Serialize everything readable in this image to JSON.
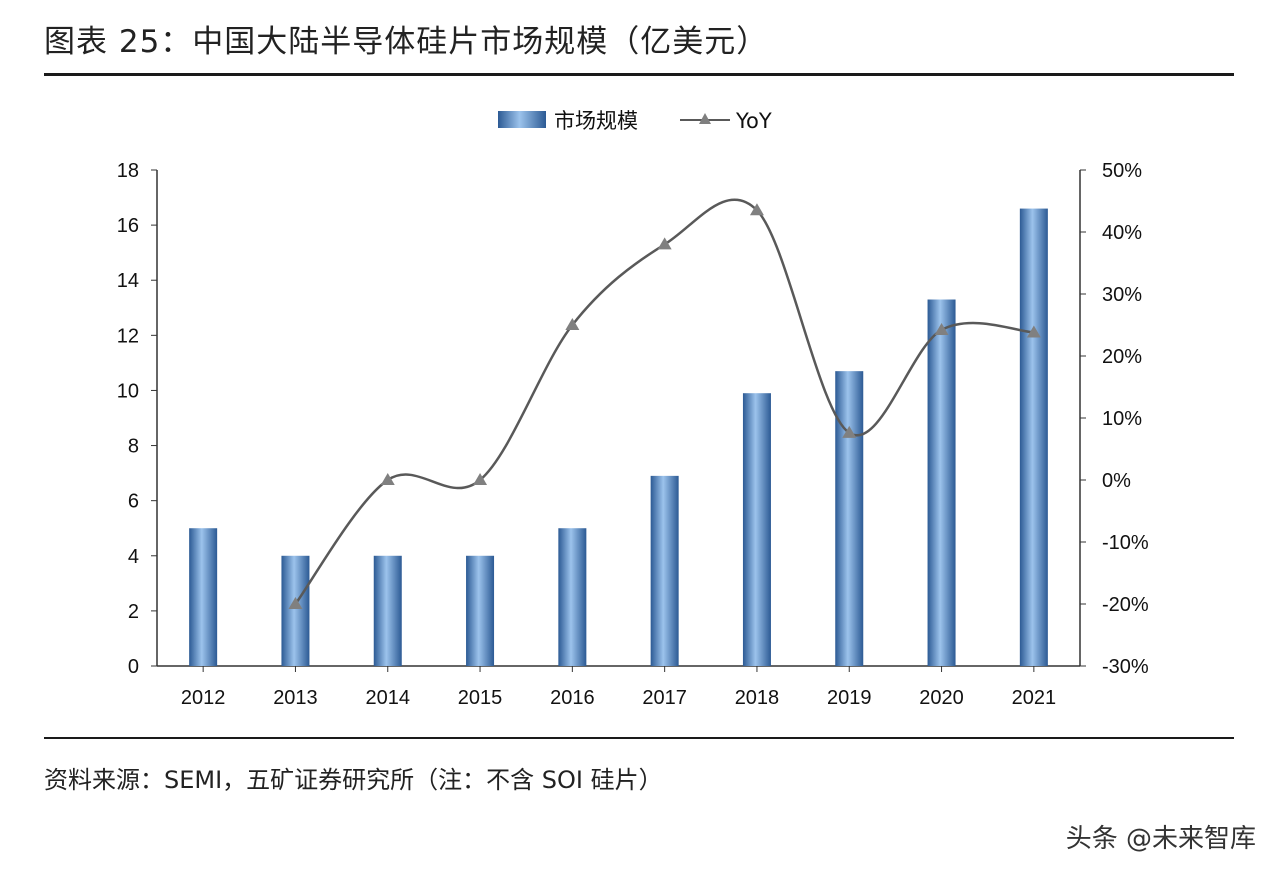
{
  "title": "图表 25：中国大陆半导体硅片市场规模（亿美元）",
  "source": "资料来源：SEMI，五矿证券研究所（注：不含 SOI 硅片）",
  "watermark": "头条 @未来智库",
  "chart_data": {
    "type": "bar+line",
    "categories": [
      "2012",
      "2013",
      "2014",
      "2015",
      "2016",
      "2017",
      "2018",
      "2019",
      "2020",
      "2021"
    ],
    "series": [
      {
        "name": "市场规模",
        "type": "bar",
        "axis": "left",
        "color": "#4f81bd",
        "values": [
          5,
          4,
          4,
          4,
          5,
          6.9,
          9.9,
          10.7,
          13.3,
          16.6
        ]
      },
      {
        "name": "YoY",
        "type": "line",
        "axis": "right",
        "color": "#595959",
        "marker": "triangle",
        "values": [
          null,
          -20,
          0,
          0,
          25,
          38,
          43.5,
          7.6,
          24.2,
          23.8
        ]
      }
    ],
    "left_axis": {
      "ylim": [
        0,
        18
      ],
      "ticks": [
        "0",
        "2",
        "4",
        "6",
        "8",
        "10",
        "12",
        "14",
        "16",
        "18"
      ]
    },
    "right_axis": {
      "ylim": [
        -30,
        50
      ],
      "ticks": [
        "-30%",
        "-20%",
        "-10%",
        "0%",
        "10%",
        "20%",
        "30%",
        "40%",
        "50%"
      ]
    },
    "legend": {
      "position": "top",
      "labels": [
        "市场规模",
        "YoY"
      ]
    },
    "grid": false
  }
}
